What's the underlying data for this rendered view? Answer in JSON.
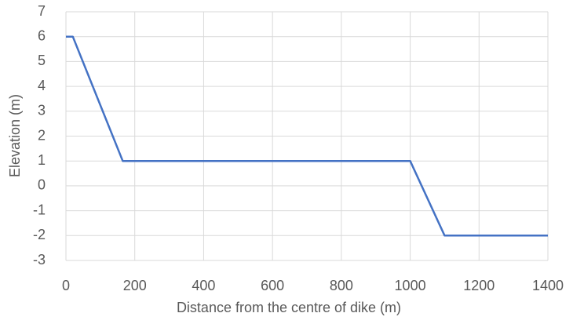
{
  "chart_data": {
    "type": "line",
    "x_label": "Distance from the centre of dike (m)",
    "y_label": "Elevation (m)",
    "series": [
      {
        "name": "Elevation",
        "color": "#4472c4",
        "x": [
          0,
          20,
          165,
          1000,
          1100,
          1400
        ],
        "values": [
          6,
          6,
          1,
          1,
          -2,
          -2
        ]
      }
    ],
    "xlim": [
      0,
      1400
    ],
    "xticks": [
      0,
      200,
      400,
      600,
      800,
      1000,
      1200,
      1400
    ],
    "ylim": [
      -3,
      7
    ],
    "yticks": [
      -3,
      -2,
      -1,
      0,
      1,
      2,
      3,
      4,
      5,
      6,
      7
    ],
    "grid": true
  }
}
